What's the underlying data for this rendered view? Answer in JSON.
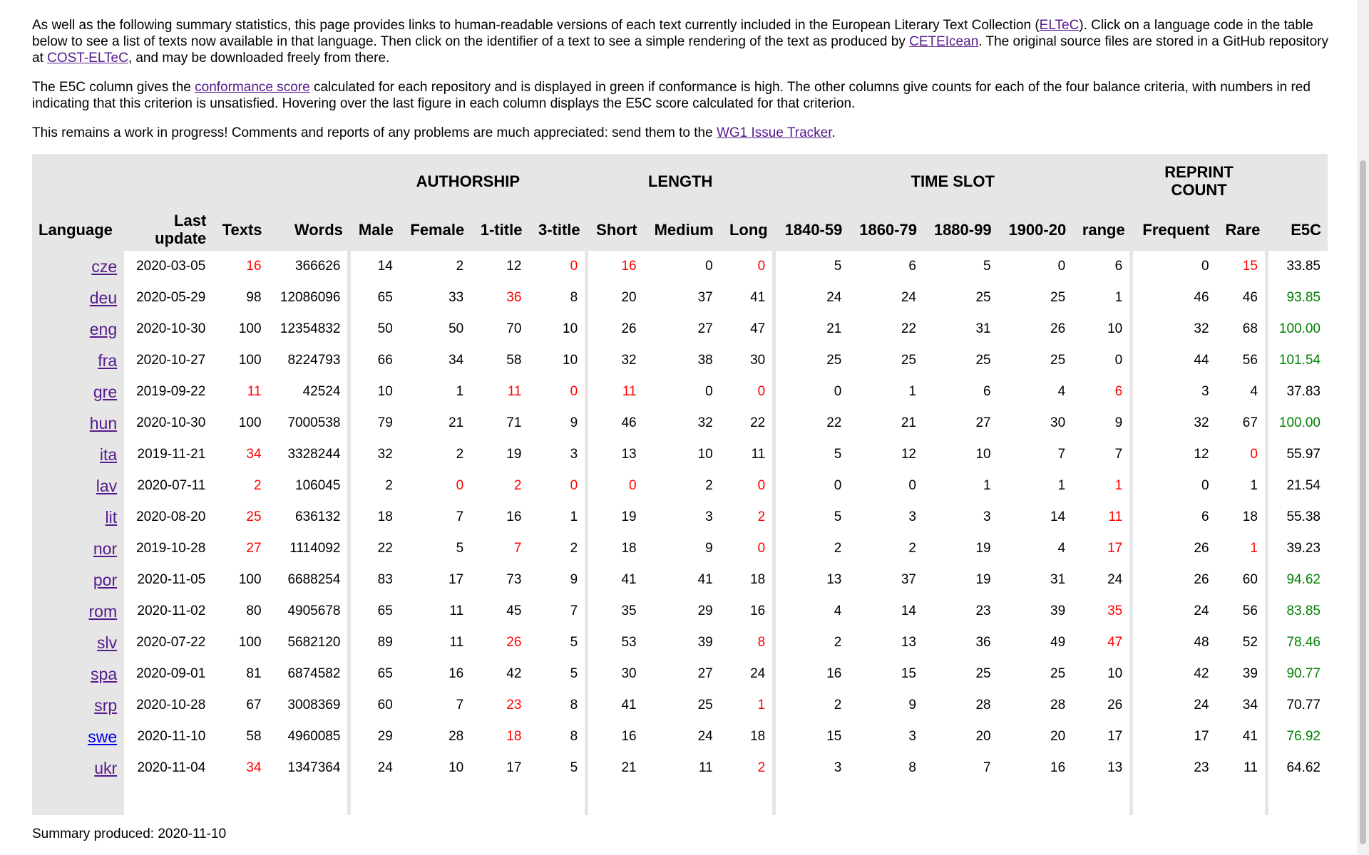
{
  "intro": {
    "p1_a": "As well as the following summary statistics, this page provides links to human-readable versions of each text currently included in the European Literary Text Collection (",
    "p1_link1": "ELTeC",
    "p1_b": "). Click on a language code in the table below to see a list of texts now available in that language. Then click on the identifier of a text to see a simple rendering of the text as produced by ",
    "p1_link2": "CETEIcean",
    "p1_c": ". The original source files are stored in a GitHub repository at ",
    "p1_link3": "COST-ELTeC",
    "p1_d": ", and may be downloaded freely from there.",
    "p2_a": "The E5C column gives the ",
    "p2_link": "conformance score",
    "p2_b": " calculated for each repository and is displayed in green if conformance is high. The other columns give counts for each of the four balance criteria, with numbers in red indicating that this criterion is unsatisfied. Hovering over the last figure in each column displays the E5C score calculated for that criterion.",
    "p3_a": "This remains a work in progress! Comments and reports of any problems are much appreciated: send them to the ",
    "p3_link": "WG1 Issue Tracker",
    "p3_b": "."
  },
  "table": {
    "groups": {
      "authorship": "AUTHORSHIP",
      "length": "LENGTH",
      "time_slot": "TIME SLOT",
      "reprint_count_1": "REPRINT",
      "reprint_count_2": "COUNT"
    },
    "headers": {
      "language": "Language",
      "last_update_1": "Last",
      "last_update_2": "update",
      "texts": "Texts",
      "words": "Words",
      "male": "Male",
      "female": "Female",
      "one_title": "1-title",
      "three_title": "3-title",
      "short": "Short",
      "medium": "Medium",
      "long": "Long",
      "p1840": "1840-59",
      "p1860": "1860-79",
      "p1880": "1880-99",
      "p1900": "1900-20",
      "range": "range",
      "frequent": "Frequent",
      "rare": "Rare",
      "e5c": "E5C"
    },
    "rows": [
      {
        "lang": "cze",
        "update": "2020-03-05",
        "texts": "16",
        "words": "366626",
        "male": "14",
        "female": "2",
        "t1": "12",
        "t3": "0",
        "short": "16",
        "medium": "0",
        "long": "0",
        "p1840": "5",
        "p1860": "6",
        "p1880": "5",
        "p1900": "0",
        "range": "6",
        "frequent": "0",
        "rare": "15",
        "e5c": "33.85",
        "red": [
          "texts",
          "t3",
          "short",
          "long",
          "rare"
        ],
        "green": false
      },
      {
        "lang": "deu",
        "update": "2020-05-29",
        "texts": "98",
        "words": "12086096",
        "male": "65",
        "female": "33",
        "t1": "36",
        "t3": "8",
        "short": "20",
        "medium": "37",
        "long": "41",
        "p1840": "24",
        "p1860": "24",
        "p1880": "25",
        "p1900": "25",
        "range": "1",
        "frequent": "46",
        "rare": "46",
        "e5c": "93.85",
        "red": [
          "t1"
        ],
        "green": true
      },
      {
        "lang": "eng",
        "update": "2020-10-30",
        "texts": "100",
        "words": "12354832",
        "male": "50",
        "female": "50",
        "t1": "70",
        "t3": "10",
        "short": "26",
        "medium": "27",
        "long": "47",
        "p1840": "21",
        "p1860": "22",
        "p1880": "31",
        "p1900": "26",
        "range": "10",
        "frequent": "32",
        "rare": "68",
        "e5c": "100.00",
        "red": [],
        "green": true
      },
      {
        "lang": "fra",
        "update": "2020-10-27",
        "texts": "100",
        "words": "8224793",
        "male": "66",
        "female": "34",
        "t1": "58",
        "t3": "10",
        "short": "32",
        "medium": "38",
        "long": "30",
        "p1840": "25",
        "p1860": "25",
        "p1880": "25",
        "p1900": "25",
        "range": "0",
        "frequent": "44",
        "rare": "56",
        "e5c": "101.54",
        "red": [],
        "green": true
      },
      {
        "lang": "gre",
        "update": "2019-09-22",
        "texts": "11",
        "words": "42524",
        "male": "10",
        "female": "1",
        "t1": "11",
        "t3": "0",
        "short": "11",
        "medium": "0",
        "long": "0",
        "p1840": "0",
        "p1860": "1",
        "p1880": "6",
        "p1900": "4",
        "range": "6",
        "frequent": "3",
        "rare": "4",
        "e5c": "37.83",
        "red": [
          "texts",
          "t1",
          "t3",
          "short",
          "long",
          "range"
        ],
        "green": false
      },
      {
        "lang": "hun",
        "update": "2020-10-30",
        "texts": "100",
        "words": "7000538",
        "male": "79",
        "female": "21",
        "t1": "71",
        "t3": "9",
        "short": "46",
        "medium": "32",
        "long": "22",
        "p1840": "22",
        "p1860": "21",
        "p1880": "27",
        "p1900": "30",
        "range": "9",
        "frequent": "32",
        "rare": "67",
        "e5c": "100.00",
        "red": [],
        "green": true
      },
      {
        "lang": "ita",
        "update": "2019-11-21",
        "texts": "34",
        "words": "3328244",
        "male": "32",
        "female": "2",
        "t1": "19",
        "t3": "3",
        "short": "13",
        "medium": "10",
        "long": "11",
        "p1840": "5",
        "p1860": "12",
        "p1880": "10",
        "p1900": "7",
        "range": "7",
        "frequent": "12",
        "rare": "0",
        "e5c": "55.97",
        "red": [
          "texts",
          "rare"
        ],
        "green": false
      },
      {
        "lang": "lav",
        "update": "2020-07-11",
        "texts": "2",
        "words": "106045",
        "male": "2",
        "female": "0",
        "t1": "2",
        "t3": "0",
        "short": "0",
        "medium": "2",
        "long": "0",
        "p1840": "0",
        "p1860": "0",
        "p1880": "1",
        "p1900": "1",
        "range": "1",
        "frequent": "0",
        "rare": "1",
        "e5c": "21.54",
        "red": [
          "texts",
          "female",
          "t1",
          "t3",
          "short",
          "long",
          "range"
        ],
        "green": false
      },
      {
        "lang": "lit",
        "update": "2020-08-20",
        "texts": "25",
        "words": "636132",
        "male": "18",
        "female": "7",
        "t1": "16",
        "t3": "1",
        "short": "19",
        "medium": "3",
        "long": "2",
        "p1840": "5",
        "p1860": "3",
        "p1880": "3",
        "p1900": "14",
        "range": "11",
        "frequent": "6",
        "rare": "18",
        "e5c": "55.38",
        "red": [
          "texts",
          "long",
          "range"
        ],
        "green": false
      },
      {
        "lang": "nor",
        "update": "2019-10-28",
        "texts": "27",
        "words": "1114092",
        "male": "22",
        "female": "5",
        "t1": "7",
        "t3": "2",
        "short": "18",
        "medium": "9",
        "long": "0",
        "p1840": "2",
        "p1860": "2",
        "p1880": "19",
        "p1900": "4",
        "range": "17",
        "frequent": "26",
        "rare": "1",
        "e5c": "39.23",
        "red": [
          "texts",
          "t1",
          "long",
          "range",
          "rare"
        ],
        "green": false
      },
      {
        "lang": "por",
        "update": "2020-11-05",
        "texts": "100",
        "words": "6688254",
        "male": "83",
        "female": "17",
        "t1": "73",
        "t3": "9",
        "short": "41",
        "medium": "41",
        "long": "18",
        "p1840": "13",
        "p1860": "37",
        "p1880": "19",
        "p1900": "31",
        "range": "24",
        "frequent": "26",
        "rare": "60",
        "e5c": "94.62",
        "red": [],
        "green": true
      },
      {
        "lang": "rom",
        "update": "2020-11-02",
        "texts": "80",
        "words": "4905678",
        "male": "65",
        "female": "11",
        "t1": "45",
        "t3": "7",
        "short": "35",
        "medium": "29",
        "long": "16",
        "p1840": "4",
        "p1860": "14",
        "p1880": "23",
        "p1900": "39",
        "range": "35",
        "frequent": "24",
        "rare": "56",
        "e5c": "83.85",
        "red": [
          "range"
        ],
        "green": true
      },
      {
        "lang": "slv",
        "update": "2020-07-22",
        "texts": "100",
        "words": "5682120",
        "male": "89",
        "female": "11",
        "t1": "26",
        "t3": "5",
        "short": "53",
        "medium": "39",
        "long": "8",
        "p1840": "2",
        "p1860": "13",
        "p1880": "36",
        "p1900": "49",
        "range": "47",
        "frequent": "48",
        "rare": "52",
        "e5c": "78.46",
        "red": [
          "t1",
          "long",
          "range"
        ],
        "green": true
      },
      {
        "lang": "spa",
        "update": "2020-09-01",
        "texts": "81",
        "words": "6874582",
        "male": "65",
        "female": "16",
        "t1": "42",
        "t3": "5",
        "short": "30",
        "medium": "27",
        "long": "24",
        "p1840": "16",
        "p1860": "15",
        "p1880": "25",
        "p1900": "25",
        "range": "10",
        "frequent": "42",
        "rare": "39",
        "e5c": "90.77",
        "red": [],
        "green": true
      },
      {
        "lang": "srp",
        "update": "2020-10-28",
        "texts": "67",
        "words": "3008369",
        "male": "60",
        "female": "7",
        "t1": "23",
        "t3": "8",
        "short": "41",
        "medium": "25",
        "long": "1",
        "p1840": "2",
        "p1860": "9",
        "p1880": "28",
        "p1900": "28",
        "range": "26",
        "frequent": "24",
        "rare": "34",
        "e5c": "70.77",
        "red": [
          "t1",
          "long"
        ],
        "green": false
      },
      {
        "lang": "swe",
        "update": "2020-11-10",
        "texts": "58",
        "words": "4960085",
        "male": "29",
        "female": "28",
        "t1": "18",
        "t3": "8",
        "short": "16",
        "medium": "24",
        "long": "18",
        "p1840": "15",
        "p1860": "3",
        "p1880": "20",
        "p1900": "20",
        "range": "17",
        "frequent": "17",
        "rare": "41",
        "e5c": "76.92",
        "red": [
          "t1"
        ],
        "green": true,
        "unvisited": true
      },
      {
        "lang": "ukr",
        "update": "2020-11-04",
        "texts": "34",
        "words": "1347364",
        "male": "24",
        "female": "10",
        "t1": "17",
        "t3": "5",
        "short": "21",
        "medium": "11",
        "long": "2",
        "p1840": "3",
        "p1860": "8",
        "p1880": "7",
        "p1900": "16",
        "range": "13",
        "frequent": "23",
        "rare": "11",
        "e5c": "64.62",
        "red": [
          "texts",
          "long"
        ],
        "green": false
      }
    ]
  },
  "footer": {
    "label": "Summary produced: 2020-11-10"
  }
}
